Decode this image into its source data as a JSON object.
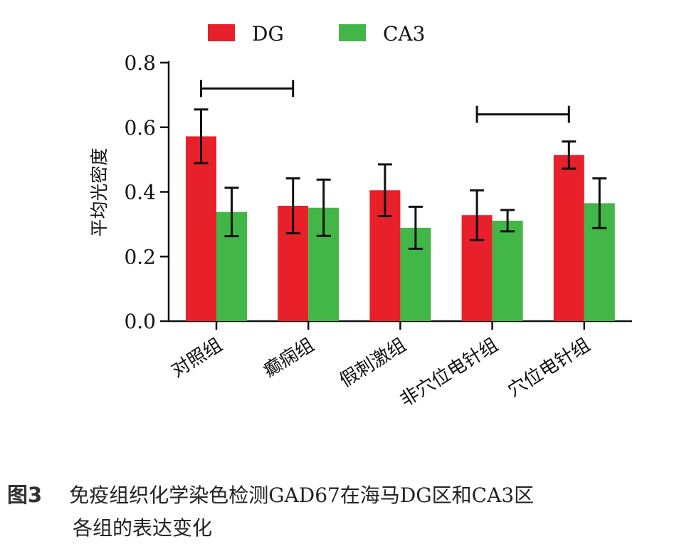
{
  "chart_data": {
    "type": "bar",
    "title": "",
    "xlabel": "",
    "ylabel": "平均光密度",
    "ylim": [
      0,
      0.8
    ],
    "yticks": [
      "0.0",
      "0.2",
      "0.4",
      "0.6",
      "0.8"
    ],
    "categories": [
      "对照组",
      "癫痫组",
      "假刺激组",
      "非穴位电针组",
      "穴位电针组"
    ],
    "series": [
      {
        "name": "DG",
        "color": "#e8202a",
        "values": [
          0.572,
          0.357,
          0.405,
          0.328,
          0.514
        ],
        "err": [
          0.083,
          0.085,
          0.08,
          0.077,
          0.042
        ]
      },
      {
        "name": "CA3",
        "color": "#43b648",
        "values": [
          0.338,
          0.351,
          0.289,
          0.311,
          0.365
        ],
        "err": [
          0.075,
          0.087,
          0.065,
          0.033,
          0.077
        ]
      }
    ],
    "significance_brackets": [
      {
        "from_category": "对照组",
        "to_category": "癫痫组",
        "y": 0.72
      },
      {
        "from_category": "非穴位电针组",
        "to_category": "穴位电针组",
        "y": 0.64
      }
    ],
    "legend_position": "top",
    "grid": false
  },
  "caption": {
    "label": "图3",
    "line1": "免疫组织化学染色检测GAD67在海马DG区和CA3区",
    "line2": "各组的表达变化"
  }
}
